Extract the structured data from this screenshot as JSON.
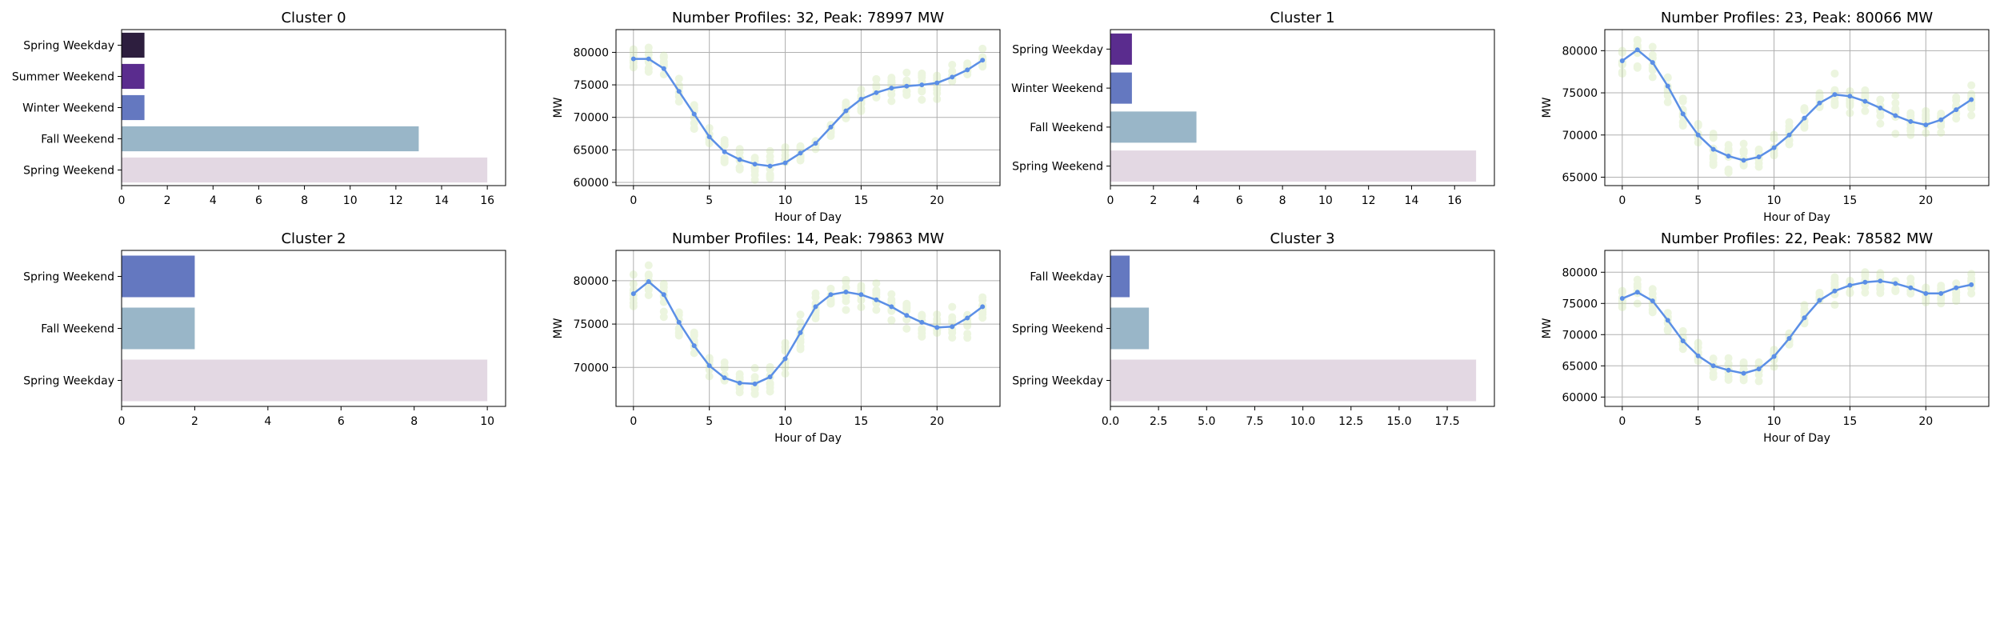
{
  "colors": {
    "bar_palette": [
      "#2d1e3e",
      "#5a2c8e",
      "#6478c0",
      "#99b6c8",
      "#e3d8e3"
    ],
    "mean_line": "#5b8fe6",
    "profile_points": "#c9e3a6"
  },
  "charts": [
    {
      "id": "bar0",
      "type": "barh",
      "title": "Cluster 0",
      "categories": [
        "Spring Weekday",
        "Summer Weekend",
        "Winter Weekend",
        "Fall Weekend",
        "Spring Weekend"
      ],
      "values": [
        1,
        1,
        1,
        13,
        16
      ],
      "color_index": [
        0,
        1,
        2,
        3,
        4
      ],
      "xlim": [
        0,
        16.8
      ],
      "xticks": [
        0,
        2,
        4,
        6,
        8,
        10,
        12,
        14,
        16
      ],
      "xtick_labels": [
        "0",
        "2",
        "4",
        "6",
        "8",
        "10",
        "12",
        "14",
        "16"
      ]
    },
    {
      "id": "line0",
      "type": "line",
      "title": "Number Profiles: 32, Peak: 78997 MW",
      "xlabel": "Hour of Day",
      "ylabel": "MW",
      "xlim": [
        -1.15,
        24.15
      ],
      "ylim": [
        59500,
        83500
      ],
      "xticks": [
        0,
        5,
        10,
        15,
        20
      ],
      "yticks": [
        60000,
        65000,
        70000,
        75000,
        80000
      ],
      "x": [
        0,
        1,
        2,
        3,
        4,
        5,
        6,
        7,
        8,
        9,
        10,
        11,
        12,
        13,
        14,
        15,
        16,
        17,
        18,
        19,
        20,
        21,
        22,
        23
      ],
      "mean": [
        79000,
        79000,
        77500,
        74000,
        70500,
        67000,
        64700,
        63500,
        62800,
        62500,
        63000,
        64500,
        66000,
        68500,
        71000,
        72800,
        73800,
        74500,
        74800,
        75000,
        75300,
        76200,
        77300,
        78800
      ],
      "spread": 1800
    },
    {
      "id": "bar1",
      "type": "barh",
      "title": "Cluster 1",
      "categories": [
        "Spring Weekday",
        "Winter Weekend",
        "Fall Weekend",
        "Spring Weekend"
      ],
      "values": [
        1,
        1,
        4,
        17
      ],
      "color_index": [
        1,
        2,
        3,
        4
      ],
      "xlim": [
        0,
        17.85
      ],
      "xticks": [
        0,
        2,
        4,
        6,
        8,
        10,
        12,
        14,
        16
      ],
      "xtick_labels": [
        "0",
        "2",
        "4",
        "6",
        "8",
        "10",
        "12",
        "14",
        "16"
      ]
    },
    {
      "id": "line1",
      "type": "line",
      "title": "Number Profiles: 23, Peak: 80066 MW",
      "xlabel": "Hour of Day",
      "ylabel": "MW",
      "xlim": [
        -1.15,
        24.15
      ],
      "ylim": [
        64000,
        82500
      ],
      "xticks": [
        0,
        5,
        10,
        15,
        20
      ],
      "yticks": [
        65000,
        70000,
        75000,
        80000
      ],
      "x": [
        0,
        1,
        2,
        3,
        4,
        5,
        6,
        7,
        8,
        9,
        10,
        11,
        12,
        13,
        14,
        15,
        16,
        17,
        18,
        19,
        20,
        21,
        22,
        23
      ],
      "mean": [
        78800,
        80100,
        78600,
        75800,
        72500,
        70000,
        68300,
        67500,
        67000,
        67400,
        68500,
        70000,
        72000,
        73800,
        74800,
        74600,
        74000,
        73200,
        72300,
        71600,
        71200,
        71800,
        73000,
        74200
      ],
      "spread": 1800
    },
    {
      "id": "bar2",
      "type": "barh",
      "title": "Cluster 2",
      "categories": [
        "Spring Weekend",
        "Fall Weekend",
        "Spring Weekday"
      ],
      "values": [
        2,
        2,
        10
      ],
      "color_index": [
        2,
        3,
        4
      ],
      "xlim": [
        0,
        10.5
      ],
      "xticks": [
        0,
        2,
        4,
        6,
        8,
        10
      ],
      "xtick_labels": [
        "0",
        "2",
        "4",
        "6",
        "8",
        "10"
      ]
    },
    {
      "id": "line2",
      "type": "line",
      "title": "Number Profiles: 14, Peak: 79863 MW",
      "xlabel": "Hour of Day",
      "ylabel": "MW",
      "xlim": [
        -1.15,
        24.15
      ],
      "ylim": [
        65500,
        83500
      ],
      "xticks": [
        0,
        5,
        10,
        15,
        20
      ],
      "yticks": [
        70000,
        75000,
        80000
      ],
      "x": [
        0,
        1,
        2,
        3,
        4,
        5,
        6,
        7,
        8,
        9,
        10,
        11,
        12,
        13,
        14,
        15,
        16,
        17,
        18,
        19,
        20,
        21,
        22,
        23
      ],
      "mean": [
        78500,
        79900,
        78400,
        75200,
        72500,
        70200,
        68800,
        68200,
        68100,
        68900,
        71000,
        74000,
        77000,
        78400,
        78700,
        78400,
        77800,
        77000,
        76000,
        75200,
        74600,
        74700,
        75700,
        77000
      ],
      "spread": 1800
    },
    {
      "id": "bar3",
      "type": "barh",
      "title": "Cluster 3",
      "categories": [
        "Fall Weekday",
        "Spring Weekend",
        "Spring Weekday"
      ],
      "values": [
        1,
        2,
        19
      ],
      "color_index": [
        2,
        3,
        4
      ],
      "xlim": [
        0,
        19.95
      ],
      "xticks": [
        0,
        2.5,
        5,
        7.5,
        10,
        12.5,
        15,
        17.5
      ],
      "xtick_labels": [
        "0.0",
        "2.5",
        "5.0",
        "7.5",
        "10.0",
        "12.5",
        "15.0",
        "17.5"
      ]
    },
    {
      "id": "line3",
      "type": "line",
      "title": "Number Profiles: 22, Peak: 78582 MW",
      "xlabel": "Hour of Day",
      "ylabel": "MW",
      "xlim": [
        -1.15,
        24.15
      ],
      "ylim": [
        58500,
        83500
      ],
      "xticks": [
        0,
        5,
        10,
        15,
        20
      ],
      "yticks": [
        60000,
        65000,
        70000,
        75000,
        80000
      ],
      "x": [
        0,
        1,
        2,
        3,
        4,
        5,
        6,
        7,
        8,
        9,
        10,
        11,
        12,
        13,
        14,
        15,
        16,
        17,
        18,
        19,
        20,
        21,
        22,
        23
      ],
      "mean": [
        75800,
        76800,
        75400,
        72300,
        69000,
        66600,
        65000,
        64300,
        63800,
        64500,
        66500,
        69400,
        72700,
        75500,
        77000,
        77900,
        78400,
        78600,
        78200,
        77500,
        76600,
        76600,
        77500,
        78000
      ],
      "spread": 1800
    }
  ]
}
